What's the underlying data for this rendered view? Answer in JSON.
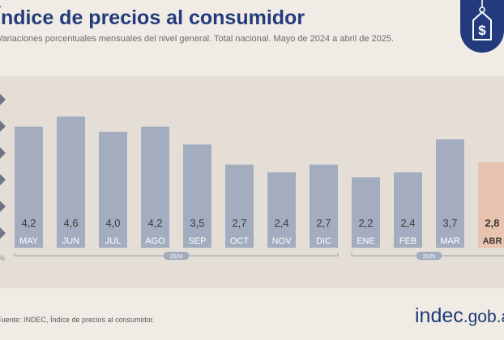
{
  "chart_data": {
    "type": "bar",
    "title": "Índice de precios al consumidor",
    "subtitle": "Variaciones porcentuales mensuales del nivel general. Total nacional. Mayo de 2024 a abril de 2025.",
    "categories": [
      "MAY",
      "JUN",
      "JUL",
      "AGO",
      "SEP",
      "OCT",
      "NOV",
      "DIC",
      "ENE",
      "FEB",
      "MAR",
      "ABR"
    ],
    "value_labels": [
      "4,2",
      "4,6",
      "4,0",
      "4,2",
      "3,5",
      "2,7",
      "2,4",
      "2,7",
      "2,2",
      "2,4",
      "3,7",
      "2,8"
    ],
    "values": [
      4.2,
      4.6,
      4.0,
      4.2,
      3.5,
      2.7,
      2.4,
      2.7,
      2.2,
      2.4,
      3.7,
      2.8
    ],
    "highlight_index": 11,
    "ylim": [
      0,
      5
    ],
    "y_unit": "%",
    "year_groups": [
      {
        "label": "2024",
        "from": 0,
        "to": 7
      },
      {
        "label": "2025",
        "from": 8,
        "to": 11
      }
    ],
    "bar_color": "#a3adbf",
    "highlight_color": "#e9c3b0",
    "grid": false,
    "legend": "none"
  },
  "footer": {
    "source": "Fuente: INDEC, Índice de precios al consumidor.",
    "logo_main": "indec",
    "logo_suffix": ".gob.ar"
  },
  "colors": {
    "title": "#233b7d",
    "badge": "#233b7d",
    "background": "#f0ebe4"
  },
  "icons": {
    "badge": "price-tag-dollar-icon"
  }
}
